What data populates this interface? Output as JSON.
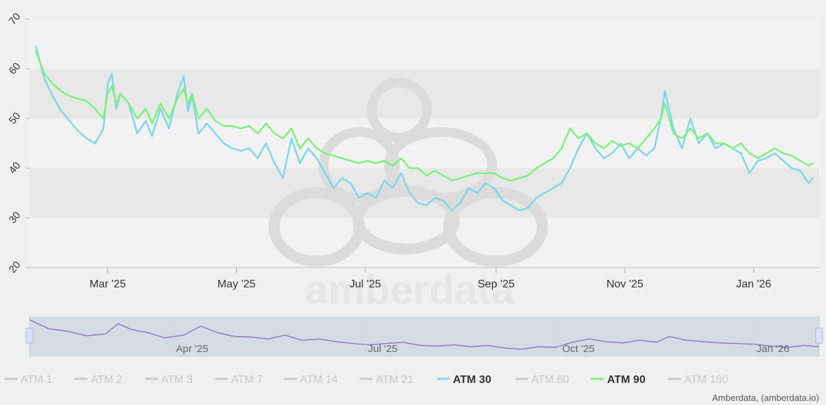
{
  "watermark": "amberdata",
  "credit": "Amberdata, (amberdata.io)",
  "colors": {
    "background": "#f0f0f0",
    "bandLight": "#f2f2f2",
    "bandDark": "#e8e8e8",
    "atm30": "#7fd6ee",
    "atm90": "#7cf27c",
    "navigatorLine": "#8a6cc6",
    "navigatorMask": "rgba(102,133,194,0.15)",
    "legendInactive": "#c8c8c8",
    "legendActiveText": "#333333"
  },
  "chart_data": {
    "type": "line",
    "x_type": "date",
    "xlim": [
      "2025-01-23",
      "2026-02-01"
    ],
    "ylim": [
      20,
      70
    ],
    "yticks": [
      20,
      30,
      40,
      50,
      60,
      70
    ],
    "xticks": [
      {
        "date": "2025-03-01",
        "label": "Mar '25"
      },
      {
        "date": "2025-05-01",
        "label": "May '25"
      },
      {
        "date": "2025-07-01",
        "label": "Jul '25"
      },
      {
        "date": "2025-09-01",
        "label": "Sep '25"
      },
      {
        "date": "2025-11-01",
        "label": "Nov '25"
      },
      {
        "date": "2026-01-01",
        "label": "Jan '26"
      }
    ],
    "grid": "alternating horizontal bands",
    "navigator_ticks": [
      {
        "date": "2025-04-01",
        "label": "Apr '25"
      },
      {
        "date": "2025-07-01",
        "label": "Jul '25"
      },
      {
        "date": "2025-10-01",
        "label": "Oct '25"
      },
      {
        "date": "2026-01-01",
        "label": "Jan '26"
      }
    ],
    "series": [
      {
        "name": "ATM 30",
        "color": "#7fd6ee",
        "x": [
          "2025-01-26",
          "2025-01-30",
          "2025-02-03",
          "2025-02-07",
          "2025-02-11",
          "2025-02-15",
          "2025-02-19",
          "2025-02-23",
          "2025-02-27",
          "2025-03-01",
          "2025-03-03",
          "2025-03-05",
          "2025-03-07",
          "2025-03-11",
          "2025-03-15",
          "2025-03-19",
          "2025-03-22",
          "2025-03-26",
          "2025-03-30",
          "2025-04-03",
          "2025-04-06",
          "2025-04-08",
          "2025-04-10",
          "2025-04-13",
          "2025-04-17",
          "2025-04-21",
          "2025-04-25",
          "2025-04-29",
          "2025-05-03",
          "2025-05-07",
          "2025-05-11",
          "2025-05-15",
          "2025-05-19",
          "2025-05-23",
          "2025-05-27",
          "2025-05-31",
          "2025-06-04",
          "2025-06-08",
          "2025-06-12",
          "2025-06-16",
          "2025-06-20",
          "2025-06-24",
          "2025-06-28",
          "2025-07-02",
          "2025-07-06",
          "2025-07-10",
          "2025-07-14",
          "2025-07-18",
          "2025-07-22",
          "2025-07-26",
          "2025-07-30",
          "2025-08-03",
          "2025-08-07",
          "2025-08-11",
          "2025-08-15",
          "2025-08-19",
          "2025-08-23",
          "2025-08-27",
          "2025-08-31",
          "2025-09-04",
          "2025-09-08",
          "2025-09-12",
          "2025-09-16",
          "2025-09-20",
          "2025-09-24",
          "2025-09-28",
          "2025-10-02",
          "2025-10-06",
          "2025-10-10",
          "2025-10-14",
          "2025-10-18",
          "2025-10-22",
          "2025-10-26",
          "2025-10-30",
          "2025-11-03",
          "2025-11-07",
          "2025-11-11",
          "2025-11-15",
          "2025-11-18",
          "2025-11-20",
          "2025-11-24",
          "2025-11-28",
          "2025-12-02",
          "2025-12-06",
          "2025-12-10",
          "2025-12-14",
          "2025-12-18",
          "2025-12-22",
          "2025-12-26",
          "2025-12-30",
          "2026-01-03",
          "2026-01-07",
          "2026-01-11",
          "2026-01-15",
          "2026-01-19",
          "2026-01-23",
          "2026-01-27",
          "2026-01-29"
        ],
        "values": [
          64.5,
          58,
          54.5,
          51.5,
          49.5,
          47.5,
          46,
          45,
          48,
          57,
          59,
          52,
          55,
          53,
          47,
          49.5,
          46.5,
          52,
          48,
          55,
          58.5,
          51.5,
          54.5,
          47,
          49,
          47,
          45,
          44,
          43.5,
          44,
          42,
          45,
          41,
          38,
          46,
          41,
          44,
          42,
          39,
          36,
          38,
          37,
          34,
          35,
          34,
          37.5,
          36,
          39,
          35,
          33,
          32.5,
          34,
          33.5,
          31.5,
          33,
          36,
          35,
          37,
          36,
          33.5,
          32.5,
          31.5,
          32,
          34,
          35,
          36,
          37,
          40,
          44,
          47,
          44,
          42,
          43,
          45,
          42,
          44,
          42.5,
          44,
          50,
          55.5,
          48,
          44,
          50,
          45,
          47,
          44,
          45,
          44,
          43,
          39,
          41.5,
          42,
          43,
          41.5,
          40,
          39.5,
          37,
          38
        ]
      },
      {
        "name": "ATM 90",
        "color": "#7cf27c",
        "x": [
          "2025-01-26",
          "2025-01-30",
          "2025-02-03",
          "2025-02-07",
          "2025-02-11",
          "2025-02-15",
          "2025-02-19",
          "2025-02-23",
          "2025-02-27",
          "2025-03-01",
          "2025-03-03",
          "2025-03-05",
          "2025-03-07",
          "2025-03-11",
          "2025-03-15",
          "2025-03-19",
          "2025-03-22",
          "2025-03-26",
          "2025-03-30",
          "2025-04-03",
          "2025-04-06",
          "2025-04-08",
          "2025-04-10",
          "2025-04-13",
          "2025-04-17",
          "2025-04-21",
          "2025-04-25",
          "2025-04-29",
          "2025-05-03",
          "2025-05-07",
          "2025-05-11",
          "2025-05-15",
          "2025-05-19",
          "2025-05-23",
          "2025-05-27",
          "2025-05-31",
          "2025-06-04",
          "2025-06-08",
          "2025-06-12",
          "2025-06-16",
          "2025-06-20",
          "2025-06-24",
          "2025-06-28",
          "2025-07-02",
          "2025-07-06",
          "2025-07-10",
          "2025-07-14",
          "2025-07-18",
          "2025-07-22",
          "2025-07-26",
          "2025-07-30",
          "2025-08-03",
          "2025-08-07",
          "2025-08-11",
          "2025-08-15",
          "2025-08-19",
          "2025-08-23",
          "2025-08-27",
          "2025-08-31",
          "2025-09-04",
          "2025-09-08",
          "2025-09-12",
          "2025-09-16",
          "2025-09-20",
          "2025-09-24",
          "2025-09-28",
          "2025-10-02",
          "2025-10-06",
          "2025-10-10",
          "2025-10-14",
          "2025-10-18",
          "2025-10-22",
          "2025-10-26",
          "2025-10-30",
          "2025-11-03",
          "2025-11-07",
          "2025-11-11",
          "2025-11-15",
          "2025-11-18",
          "2025-11-20",
          "2025-11-24",
          "2025-11-28",
          "2025-12-02",
          "2025-12-06",
          "2025-12-10",
          "2025-12-14",
          "2025-12-18",
          "2025-12-22",
          "2025-12-26",
          "2025-12-30",
          "2026-01-03",
          "2026-01-07",
          "2026-01-11",
          "2026-01-15",
          "2026-01-19",
          "2026-01-23",
          "2026-01-27",
          "2026-01-29"
        ],
        "values": [
          63.5,
          59,
          57,
          55.5,
          54.5,
          54,
          53.5,
          52,
          50,
          55,
          56.5,
          53,
          55,
          53,
          50,
          52,
          49,
          53,
          50,
          54,
          56,
          53,
          55,
          50,
          52,
          49.5,
          48.5,
          48.5,
          48,
          48.5,
          47,
          49,
          47,
          46,
          48,
          44,
          46,
          44,
          43,
          42.5,
          42,
          41.5,
          41,
          41.5,
          41,
          41.5,
          40.5,
          42,
          40,
          40,
          38.5,
          39.5,
          38.5,
          37.5,
          38,
          38.5,
          39,
          39,
          39,
          38,
          37.5,
          38,
          38.5,
          40,
          41,
          42,
          44,
          48,
          46,
          47,
          45,
          44,
          45.5,
          44.5,
          45,
          44,
          46,
          48,
          50,
          53,
          47,
          46,
          48,
          46,
          47,
          45,
          45,
          44,
          45,
          43,
          42,
          43,
          44,
          43,
          42.5,
          41.5,
          40.5,
          41
        ]
      }
    ],
    "navigator": {
      "name": "ATM 1",
      "color": "#8a6cc6",
      "x": [
        "2025-01-23",
        "2025-02-01",
        "2025-02-10",
        "2025-02-19",
        "2025-02-28",
        "2025-03-06",
        "2025-03-12",
        "2025-03-20",
        "2025-03-28",
        "2025-04-06",
        "2025-04-14",
        "2025-04-22",
        "2025-04-30",
        "2025-05-08",
        "2025-05-16",
        "2025-05-24",
        "2025-06-01",
        "2025-06-09",
        "2025-06-17",
        "2025-06-25",
        "2025-07-03",
        "2025-07-11",
        "2025-07-19",
        "2025-07-27",
        "2025-08-04",
        "2025-08-12",
        "2025-08-20",
        "2025-08-28",
        "2025-09-05",
        "2025-09-13",
        "2025-09-21",
        "2025-09-29",
        "2025-10-07",
        "2025-10-15",
        "2025-10-23",
        "2025-10-31",
        "2025-11-08",
        "2025-11-16",
        "2025-11-22",
        "2025-11-30",
        "2025-12-08",
        "2025-12-16",
        "2025-12-24",
        "2026-01-01",
        "2026-01-09",
        "2026-01-17",
        "2026-01-25",
        "2026-02-01"
      ],
      "values": [
        70,
        56,
        52,
        45,
        48,
        64,
        55,
        50,
        42,
        46,
        60,
        50,
        44,
        43,
        40,
        46,
        38,
        40,
        36,
        33,
        31,
        33,
        35,
        30,
        29,
        31,
        28,
        30,
        26,
        24,
        28,
        27,
        35,
        40,
        36,
        34,
        38,
        35,
        44,
        38,
        36,
        34,
        33,
        32,
        29,
        27,
        30,
        28
      ]
    }
  },
  "legend": [
    {
      "label": "ATM 1",
      "active": false
    },
    {
      "label": "ATM 2",
      "active": false
    },
    {
      "label": "ATM 3",
      "active": false
    },
    {
      "label": "ATM 7",
      "active": false
    },
    {
      "label": "ATM 14",
      "active": false
    },
    {
      "label": "ATM 21",
      "active": false
    },
    {
      "label": "ATM 30",
      "active": true,
      "color": "#7fd6ee"
    },
    {
      "label": "ATM 60",
      "active": false
    },
    {
      "label": "ATM 90",
      "active": true,
      "color": "#7cf27c"
    },
    {
      "label": "ATM 180",
      "active": false
    }
  ]
}
